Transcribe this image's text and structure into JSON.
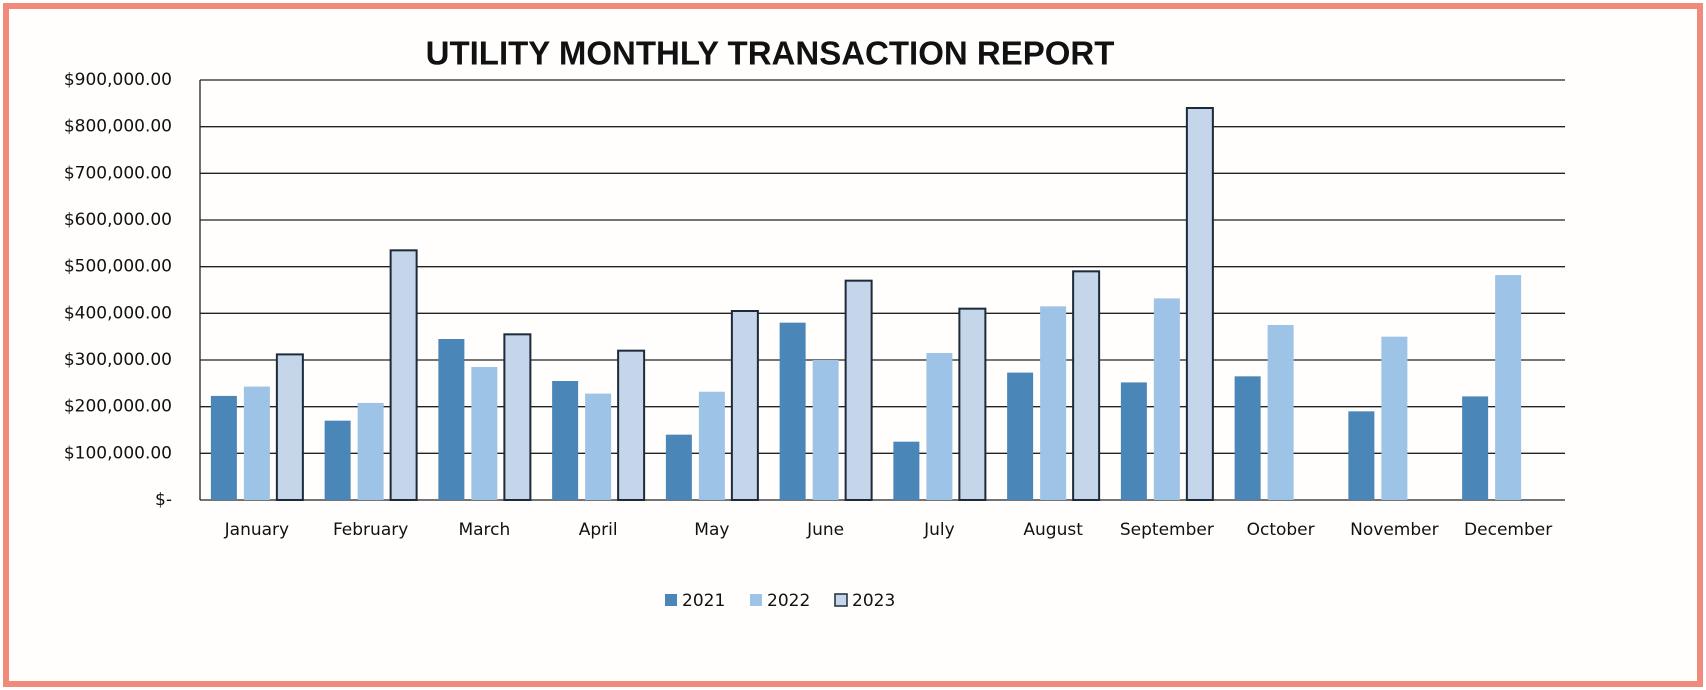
{
  "chart_data": {
    "type": "bar",
    "title": "UTILITY MONTHLY TRANSACTION REPORT",
    "categories": [
      "January",
      "February",
      "March",
      "April",
      "May",
      "June",
      "July",
      "August",
      "September",
      "October",
      "November",
      "December"
    ],
    "series": [
      {
        "name": "2021",
        "color": "#4a86b8",
        "values": [
          223000,
          170000,
          345000,
          255000,
          140000,
          380000,
          125000,
          273000,
          252000,
          265000,
          190000,
          222000
        ]
      },
      {
        "name": "2022",
        "color": "#9dc3e6",
        "values": [
          243000,
          208000,
          285000,
          228000,
          232000,
          300000,
          315000,
          415000,
          432000,
          375000,
          350000,
          482000
        ]
      },
      {
        "name": "2023",
        "color": "#c5d6ea",
        "edgecolor": "#1c2a3a",
        "values": [
          312000,
          535000,
          355000,
          320000,
          405000,
          470000,
          410000,
          490000,
          840000,
          null,
          null,
          null
        ]
      }
    ],
    "ylim": [
      0,
      900000
    ],
    "yticks": [
      {
        "value": 0,
        "label": "$-"
      },
      {
        "value": 100000,
        "label": "$100,000.00"
      },
      {
        "value": 200000,
        "label": "$200,000.00"
      },
      {
        "value": 300000,
        "label": "$300,000.00"
      },
      {
        "value": 400000,
        "label": "$400,000.00"
      },
      {
        "value": 500000,
        "label": "$500,000.00"
      },
      {
        "value": 600000,
        "label": "$600,000.00"
      },
      {
        "value": 700000,
        "label": "$700,000.00"
      },
      {
        "value": 800000,
        "label": "$800,000.00"
      },
      {
        "value": 900000,
        "label": "$900,000.00"
      }
    ],
    "grid": true,
    "legend": "bottom"
  }
}
